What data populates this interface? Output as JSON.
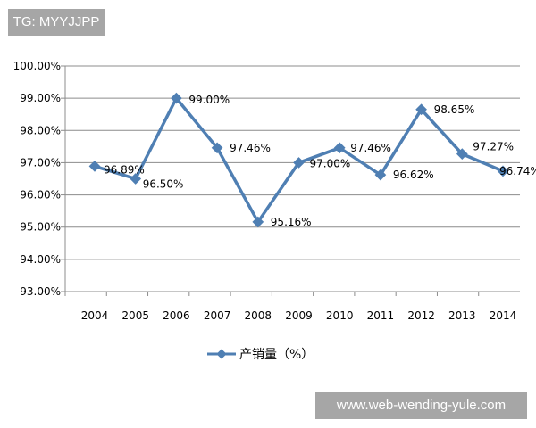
{
  "watermarks": {
    "top_left": "TG: MYYJJPP",
    "bottom_right": "www.web-wending-yule.com"
  },
  "chart_data": {
    "type": "line",
    "title": "",
    "xlabel": "",
    "ylabel": "",
    "categories": [
      "2004",
      "2005",
      "2006",
      "2007",
      "2008",
      "2009",
      "2010",
      "2011",
      "2012",
      "2013",
      "2014"
    ],
    "series": [
      {
        "name": "产销量（%）",
        "values": [
          96.89,
          96.5,
          99.0,
          97.46,
          95.16,
          97.0,
          97.46,
          96.62,
          98.65,
          97.27,
          96.74
        ],
        "color": "#4f7fb3",
        "marker": "diamond"
      }
    ],
    "data_labels": [
      "96.89%",
      "96.50%",
      "99.00%",
      "97.46%",
      "95.16%",
      "97.00%",
      "97.46%",
      "96.62%",
      "98.65%",
      "97.27%",
      "96.74%"
    ],
    "ylim": [
      93,
      100
    ],
    "yticks": [
      "93.00%",
      "94.00%",
      "95.00%",
      "96.00%",
      "97.00%",
      "98.00%",
      "99.00%",
      "100.00%"
    ],
    "grid": true,
    "legend_position": "bottom"
  }
}
